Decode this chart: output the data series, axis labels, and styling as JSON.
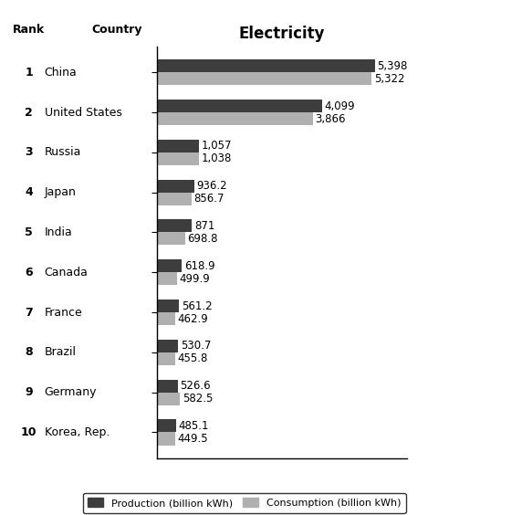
{
  "countries": [
    "China",
    "United States",
    "Russia",
    "Japan",
    "India",
    "Canada",
    "France",
    "Brazil",
    "Germany",
    "Korea, Rep."
  ],
  "ranks": [
    "1",
    "2",
    "3",
    "4",
    "5",
    "6",
    "7",
    "8",
    "9",
    "10"
  ],
  "production": [
    5398,
    4099,
    1057,
    936.2,
    871,
    618.9,
    561.2,
    530.7,
    526.6,
    485.1
  ],
  "consumption": [
    5322,
    3866,
    1038,
    856.7,
    698.8,
    499.9,
    462.9,
    455.8,
    582.5,
    449.5
  ],
  "prod_labels": [
    "5,398",
    "4,099",
    "1,057",
    "936.2",
    "871",
    "618.9",
    "561.2",
    "530.7",
    "526.6",
    "485.1"
  ],
  "cons_labels": [
    "5,322",
    "3,866",
    "1,038",
    "856.7",
    "698.8",
    "499.9",
    "462.9",
    "455.8",
    "582.5",
    "449.5"
  ],
  "production_color": "#3d3d3d",
  "consumption_color": "#b0b0b0",
  "title": "Electricity",
  "header_rank": "Rank",
  "header_country": "Country",
  "legend_production": "Production (billion kWh)",
  "legend_consumption": "Consumption (billion kWh)",
  "background_color": "#ffffff",
  "bar_height": 0.32,
  "xlim": [
    0,
    6200
  ],
  "title_fontsize": 12,
  "label_fontsize": 8.5,
  "tick_fontsize": 9,
  "header_fontsize": 9
}
